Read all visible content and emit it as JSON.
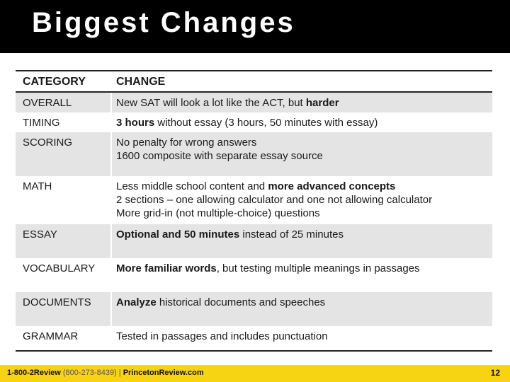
{
  "title": "Biggest Changes",
  "table": {
    "header": {
      "category": "CATEGORY",
      "change": "CHANGE"
    },
    "rows": [
      {
        "category": "OVERALL",
        "change": [
          [
            {
              "t": "New SAT will look a lot like the ACT, but ",
              "b": false
            },
            {
              "t": "harder",
              "b": true
            }
          ]
        ]
      },
      {
        "category": "TIMING",
        "change": [
          [
            {
              "t": "3 hours",
              "b": true
            },
            {
              "t": " without essay (3 hours, 50 minutes with essay)",
              "b": false
            }
          ]
        ]
      },
      {
        "category": "SCORING",
        "change": [
          [
            {
              "t": "No penalty for wrong answers",
              "b": false
            }
          ],
          [
            {
              "t": "1600 composite with separate essay source",
              "b": false
            }
          ]
        ]
      },
      {
        "category": "MATH",
        "change": [
          [
            {
              "t": "Less middle school content and ",
              "b": false
            },
            {
              "t": "more advanced concepts",
              "b": true
            }
          ],
          [
            {
              "t": "2 sections – one allowing calculator and one not allowing calculator",
              "b": false
            }
          ],
          [
            {
              "t": "More grid-in (not multiple-choice) questions",
              "b": false
            }
          ]
        ]
      },
      {
        "category": "ESSAY",
        "change": [
          [
            {
              "t": "Optional and 50 minutes",
              "b": true
            },
            {
              "t": " instead of 25 minutes",
              "b": false
            }
          ]
        ]
      },
      {
        "category": "VOCABULARY",
        "change": [
          [
            {
              "t": "More familiar words",
              "b": true
            },
            {
              "t": ", but testing multiple meanings in passages",
              "b": false
            }
          ]
        ]
      },
      {
        "category": "DOCUMENTS",
        "change": [
          [
            {
              "t": "Analyze",
              "b": true
            },
            {
              "t": " historical documents and speeches",
              "b": false
            }
          ]
        ]
      },
      {
        "category": "GRAMMAR",
        "change": [
          [
            {
              "t": "Tested in passages and includes punctuation",
              "b": false
            }
          ]
        ]
      }
    ]
  },
  "footer": {
    "phone": "1-800-2Review",
    "phone_alt": "(800-273-8439)",
    "separator": "|",
    "site": "PrincetonReview.com",
    "page_number": "12"
  },
  "colors": {
    "title_bar": "#000000",
    "row_shade": "#e4e4e4",
    "footer_bar": "#f6d313"
  }
}
